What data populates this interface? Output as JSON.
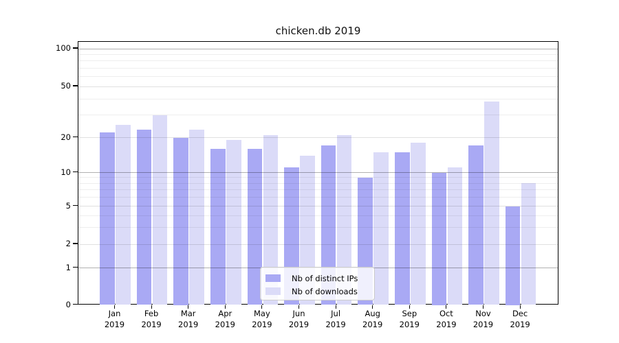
{
  "title": "chicken.db 2019",
  "chart_data": {
    "type": "bar",
    "title": "chicken.db 2019",
    "categories": [
      "Jan 2019",
      "Feb 2019",
      "Mar 2019",
      "Apr 2019",
      "May 2019",
      "Jun 2019",
      "Jul 2019",
      "Aug 2019",
      "Sep 2019",
      "Oct 2019",
      "Nov 2019",
      "Dec 2019"
    ],
    "series": [
      {
        "name": "Nb of distinct IPs",
        "color": "#a9a9f4",
        "values": [
          22,
          23,
          20,
          16,
          16,
          11,
          17,
          9,
          15,
          10,
          17,
          5
        ]
      },
      {
        "name": "Nb of downloads",
        "color": "#dbdbf8",
        "values": [
          25,
          30,
          23,
          19,
          21,
          14,
          21,
          15,
          18,
          11,
          38,
          8
        ]
      }
    ],
    "xlabel": "",
    "ylabel": "",
    "yscale": "log-like",
    "ylim": [
      0,
      110
    ],
    "grid": "on",
    "legend_position": "lower center"
  },
  "y_axis": {
    "ticks": [
      {
        "value": 100,
        "label": "100"
      },
      {
        "value": 50,
        "label": "50"
      },
      {
        "value": 20,
        "label": "20"
      },
      {
        "value": 10,
        "label": "10"
      },
      {
        "value": 5,
        "label": "5"
      },
      {
        "value": 2,
        "label": "2"
      },
      {
        "value": 1,
        "label": "1"
      },
      {
        "value": 0,
        "label": "0"
      }
    ]
  },
  "x_axis": {
    "months": [
      "Jan",
      "Feb",
      "Mar",
      "Apr",
      "May",
      "Jun",
      "Jul",
      "Aug",
      "Sep",
      "Oct",
      "Nov",
      "Dec"
    ],
    "year_label": "2019"
  },
  "legend": {
    "items": [
      {
        "label": "Nb of distinct IPs",
        "color": "#a9a9f4"
      },
      {
        "label": "Nb of downloads",
        "color": "#dbdbf8"
      }
    ]
  }
}
